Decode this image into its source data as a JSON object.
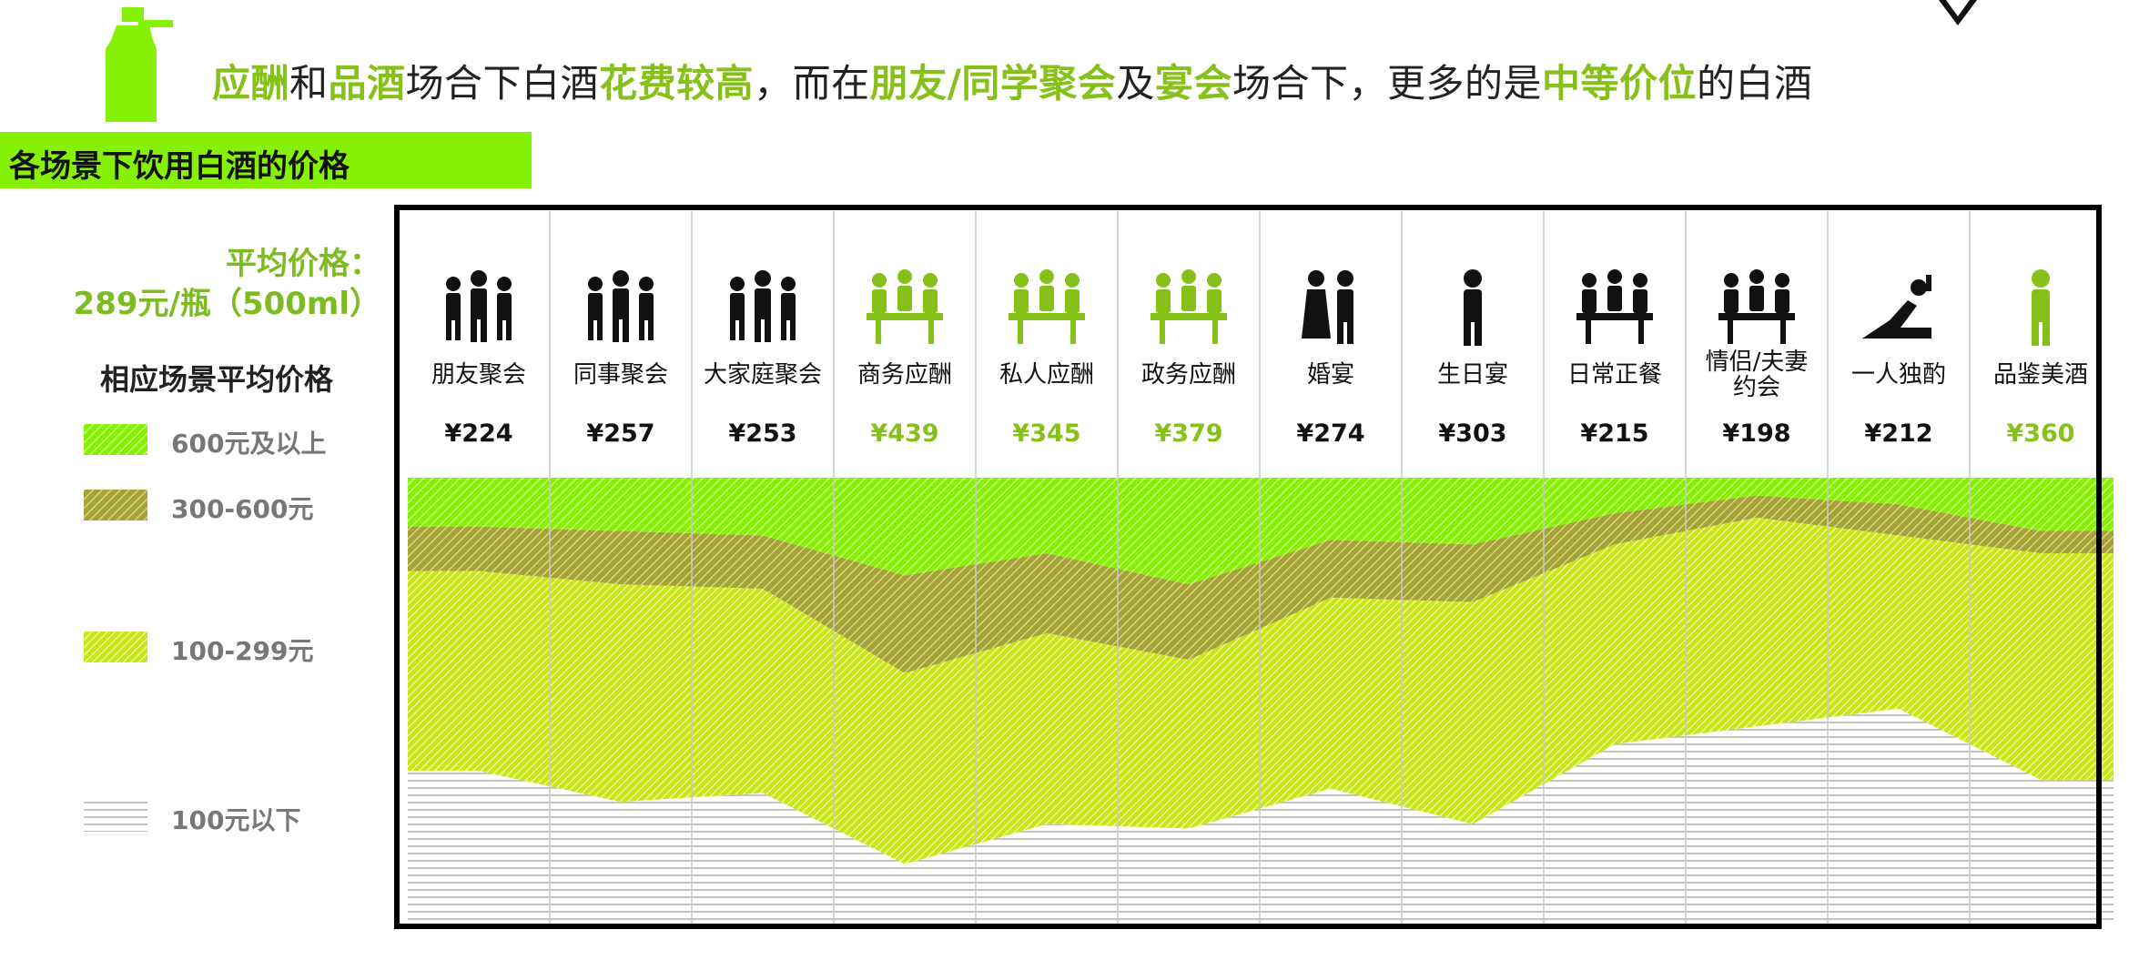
{
  "headline": {
    "p1": "应酬",
    "p2": "和",
    "p3": "品酒",
    "p4": "场合下白酒",
    "p5": "花费较高",
    "p6": "，而在",
    "p7": "朋友/同学聚会",
    "p8": "及",
    "p9": "宴会",
    "p10": "场合下，更多的是",
    "p11": "中等价位",
    "p12": "的白酒"
  },
  "section_title": "各场景下饮用白酒的价格",
  "average": {
    "line1": "平均价格：",
    "line2": "289元/瓶（500ml）"
  },
  "legend": {
    "title": "相应场景平均价格",
    "items": [
      {
        "label": "600元及以上",
        "icon": "bright-green-hatch"
      },
      {
        "label": "300-600元",
        "icon": "olive-hatch"
      },
      {
        "label": "100-299元",
        "icon": "yellow-green-hatch"
      },
      {
        "label": "100元以下",
        "icon": "grey-lines"
      }
    ]
  },
  "colors": {
    "accent": "#86c11a",
    "bright_green": "#86f007",
    "olive": "#a6a23a",
    "yellow_green": "#c8e619",
    "grey": "#9a9a9a"
  },
  "chart_data": {
    "type": "area",
    "stacked_percent": true,
    "categories": [
      {
        "label": "朋友聚会",
        "price": "¥224",
        "highlight": false,
        "icon": "friends-party-icon"
      },
      {
        "label": "同事聚会",
        "price": "¥257",
        "highlight": false,
        "icon": "colleagues-icon"
      },
      {
        "label": "大家庭聚会",
        "price": "¥253",
        "highlight": false,
        "icon": "family-icon"
      },
      {
        "label": "商务应酬",
        "price": "¥439",
        "highlight": true,
        "icon": "business-dinner-icon"
      },
      {
        "label": "私人应酬",
        "price": "¥345",
        "highlight": true,
        "icon": "private-dinner-icon"
      },
      {
        "label": "政务应酬",
        "price": "¥379",
        "highlight": true,
        "icon": "government-dinner-icon"
      },
      {
        "label": "婚宴",
        "price": "¥274",
        "highlight": false,
        "icon": "wedding-icon"
      },
      {
        "label": "生日宴",
        "price": "¥303",
        "highlight": false,
        "icon": "birthday-icon"
      },
      {
        "label": "日常正餐",
        "price": "¥215",
        "highlight": false,
        "icon": "daily-meal-icon"
      },
      {
        "label": "情侣/夫妻约会",
        "price": "¥198",
        "highlight": false,
        "icon": "couple-date-icon"
      },
      {
        "label": "一人独酌",
        "price": "¥212",
        "highlight": false,
        "icon": "solo-drink-icon"
      },
      {
        "label": "品鉴美酒",
        "price": "¥360",
        "highlight": true,
        "icon": "tasting-icon"
      }
    ],
    "series": [
      {
        "name": "100元以下",
        "values": [
          34,
          27,
          29,
          13,
          22,
          21,
          30,
          22,
          40,
          44,
          48,
          32
        ]
      },
      {
        "name": "100-299元",
        "values": [
          45,
          49,
          46,
          43,
          43,
          38,
          43,
          50,
          45,
          47,
          39,
          51
        ]
      },
      {
        "name": "300-600元",
        "values": [
          10,
          12,
          12,
          22,
          18,
          17,
          13,
          13,
          7,
          5,
          7,
          5
        ]
      },
      {
        "name": "600元及以上",
        "values": [
          11,
          12,
          13,
          22,
          17,
          24,
          14,
          15,
          8,
          4,
          6,
          12
        ]
      }
    ]
  }
}
